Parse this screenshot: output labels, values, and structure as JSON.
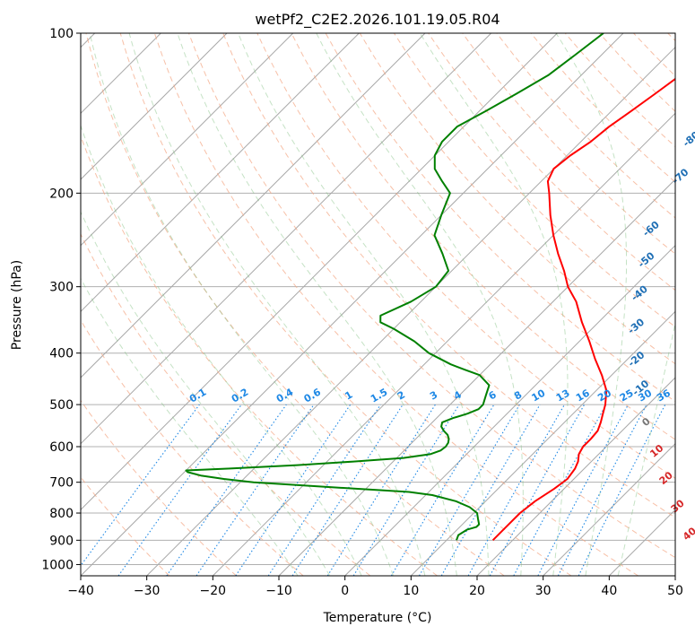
{
  "chart_data": {
    "type": "line",
    "title": "wetPf2_C2E2.2026.101.19.05.R04",
    "xlabel": "Temperature (°C)",
    "ylabel": "Pressure (hPa)",
    "xlim": [
      -40,
      50
    ],
    "ylim": [
      1050,
      100
    ],
    "y_scale": "log",
    "skew": true,
    "grid": true,
    "x_ticks": [
      -40,
      -30,
      -20,
      -10,
      0,
      10,
      20,
      30,
      40,
      50
    ],
    "y_ticks": [
      100,
      200,
      300,
      400,
      500,
      600,
      700,
      800,
      900,
      1000
    ],
    "series": [
      {
        "kind": "temperature",
        "color": "#ff0000",
        "p": [
          900,
          850,
          800,
          760,
          720,
          690,
          660,
          640,
          620,
          600,
          580,
          560,
          540,
          520,
          500,
          470,
          440,
          410,
          380,
          350,
          320,
          300,
          280,
          260,
          240,
          220,
          200,
          190,
          180,
          170,
          160,
          150,
          140,
          130,
          120,
          110,
          100
        ],
        "t": [
          17,
          17,
          17,
          17.5,
          18.5,
          19,
          18.6,
          18,
          17,
          16.5,
          16.5,
          16.3,
          15.5,
          14.5,
          13.5,
          11.5,
          8.5,
          5,
          1.5,
          -2.5,
          -6.5,
          -10,
          -13,
          -16.5,
          -20,
          -23.5,
          -27,
          -29,
          -30,
          -29.5,
          -28.5,
          -28,
          -27,
          -26,
          -25,
          -24,
          -23
        ]
      },
      {
        "kind": "dewpoint",
        "color": "#008000",
        "p": [
          900,
          880,
          860,
          850,
          840,
          820,
          800,
          780,
          760,
          740,
          730,
          720,
          700,
          690,
          680,
          670,
          665,
          660,
          650,
          640,
          630,
          620,
          610,
          600,
          590,
          580,
          570,
          560,
          550,
          540,
          530,
          520,
          510,
          500,
          480,
          460,
          440,
          430,
          420,
          400,
          380,
          360,
          350,
          340,
          320,
          300,
          280,
          260,
          240,
          220,
          200,
          190,
          180,
          170,
          160,
          150,
          140,
          130,
          120,
          110,
          100
        ],
        "t": [
          11.5,
          11,
          11.5,
          12.5,
          12.5,
          11.5,
          10.5,
          8.5,
          5.5,
          1,
          -3,
          -11.5,
          -28,
          -33,
          -37,
          -39.5,
          -40,
          -34,
          -24,
          -16,
          -9,
          -5.5,
          -4.5,
          -4.3,
          -4.5,
          -5,
          -5.8,
          -7,
          -8,
          -8.5,
          -7.5,
          -6,
          -5,
          -5,
          -6,
          -7,
          -10,
          -13,
          -16,
          -21,
          -25,
          -30,
          -33,
          -34,
          -31.5,
          -30,
          -30.5,
          -34,
          -38,
          -40,
          -42,
          -45,
          -48,
          -50,
          -51,
          -51,
          -49,
          -47,
          -45,
          -44,
          -43
        ]
      }
    ],
    "annotations": {
      "dry_adiabats": [
        "-100",
        "-90",
        "-80",
        "-70",
        "-60",
        "-50",
        "-40",
        "-30",
        "-20",
        "-10",
        "0",
        "10",
        "20",
        "30",
        "40"
      ],
      "mixing_ratios": [
        "0.1",
        "0.2",
        "0.4",
        "0.6",
        "1",
        "1.5",
        "2",
        "3",
        "4",
        "6",
        "8",
        "10",
        "13",
        "16",
        "20",
        "25",
        "30",
        "36"
      ]
    }
  }
}
